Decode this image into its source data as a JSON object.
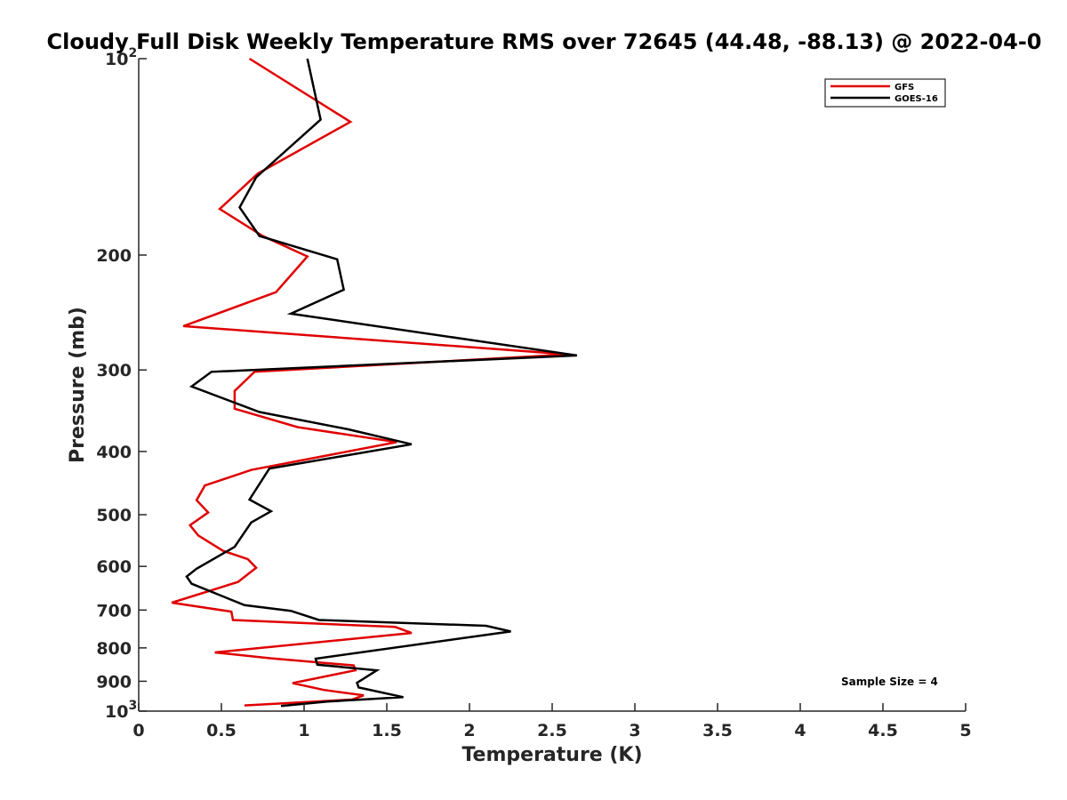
{
  "chart_data": {
    "type": "line",
    "title": "Cloudy Full Disk Weekly Temperature RMS over 72645 (44.48, -88.13) @ 2022-04-0",
    "xlabel": "Temperature (K)",
    "ylabel": "Pressure (mb)",
    "xlim": [
      0,
      5
    ],
    "ylim": [
      100,
      1000
    ],
    "y_scale": "log",
    "y_reversed": true,
    "grid": false,
    "legend_position": "top-right",
    "x_ticks": [
      "0",
      "0.5",
      "1",
      "1.5",
      "2",
      "2.5",
      "3",
      "3.5",
      "4",
      "4.5",
      "5"
    ],
    "y_ticks": [
      {
        "value": 100,
        "label": "10",
        "sup": "2"
      },
      {
        "value": 200,
        "label": "200",
        "sup": ""
      },
      {
        "value": 300,
        "label": "300",
        "sup": ""
      },
      {
        "value": 400,
        "label": "400",
        "sup": ""
      },
      {
        "value": 500,
        "label": "500",
        "sup": ""
      },
      {
        "value": 600,
        "label": "600",
        "sup": ""
      },
      {
        "value": 700,
        "label": "700",
        "sup": ""
      },
      {
        "value": 800,
        "label": "800",
        "sup": ""
      },
      {
        "value": 900,
        "label": "900",
        "sup": ""
      },
      {
        "value": 1000,
        "label": "10",
        "sup": "3"
      }
    ],
    "series": [
      {
        "name": "GFS",
        "color": "#e00000",
        "points": [
          {
            "x": 0.67,
            "y": 100
          },
          {
            "x": 1.28,
            "y": 125
          },
          {
            "x": 0.72,
            "y": 150
          },
          {
            "x": 0.49,
            "y": 170
          },
          {
            "x": 0.75,
            "y": 187
          },
          {
            "x": 1.02,
            "y": 201
          },
          {
            "x": 0.83,
            "y": 228
          },
          {
            "x": 0.27,
            "y": 257
          },
          {
            "x": 2.6,
            "y": 284
          },
          {
            "x": 0.7,
            "y": 302
          },
          {
            "x": 0.58,
            "y": 323
          },
          {
            "x": 0.58,
            "y": 344
          },
          {
            "x": 0.96,
            "y": 367
          },
          {
            "x": 1.56,
            "y": 387
          },
          {
            "x": 0.68,
            "y": 427
          },
          {
            "x": 0.4,
            "y": 451
          },
          {
            "x": 0.35,
            "y": 475
          },
          {
            "x": 0.42,
            "y": 496
          },
          {
            "x": 0.31,
            "y": 519
          },
          {
            "x": 0.36,
            "y": 538
          },
          {
            "x": 0.51,
            "y": 568
          },
          {
            "x": 0.66,
            "y": 585
          },
          {
            "x": 0.71,
            "y": 603
          },
          {
            "x": 0.6,
            "y": 634
          },
          {
            "x": 0.2,
            "y": 682
          },
          {
            "x": 0.56,
            "y": 704
          },
          {
            "x": 0.57,
            "y": 725
          },
          {
            "x": 1.55,
            "y": 743
          },
          {
            "x": 1.65,
            "y": 759
          },
          {
            "x": 0.46,
            "y": 813
          },
          {
            "x": 0.8,
            "y": 830
          },
          {
            "x": 1.3,
            "y": 851
          },
          {
            "x": 1.31,
            "y": 866
          },
          {
            "x": 0.93,
            "y": 906
          },
          {
            "x": 1.12,
            "y": 928
          },
          {
            "x": 1.36,
            "y": 946
          },
          {
            "x": 1.29,
            "y": 960
          },
          {
            "x": 0.64,
            "y": 980
          }
        ]
      },
      {
        "name": "GOES-16",
        "color": "#000000",
        "points": [
          {
            "x": 1.02,
            "y": 100
          },
          {
            "x": 1.1,
            "y": 124
          },
          {
            "x": 0.71,
            "y": 152
          },
          {
            "x": 0.61,
            "y": 169
          },
          {
            "x": 0.73,
            "y": 187
          },
          {
            "x": 1.2,
            "y": 203
          },
          {
            "x": 1.24,
            "y": 226
          },
          {
            "x": 0.92,
            "y": 246
          },
          {
            "x": 2.65,
            "y": 285
          },
          {
            "x": 0.44,
            "y": 302
          },
          {
            "x": 0.32,
            "y": 318
          },
          {
            "x": 0.73,
            "y": 348
          },
          {
            "x": 1.27,
            "y": 370
          },
          {
            "x": 1.65,
            "y": 390
          },
          {
            "x": 0.79,
            "y": 425
          },
          {
            "x": 0.67,
            "y": 474
          },
          {
            "x": 0.8,
            "y": 494
          },
          {
            "x": 0.68,
            "y": 514
          },
          {
            "x": 0.58,
            "y": 560
          },
          {
            "x": 0.35,
            "y": 605
          },
          {
            "x": 0.29,
            "y": 622
          },
          {
            "x": 0.32,
            "y": 638
          },
          {
            "x": 0.64,
            "y": 688
          },
          {
            "x": 0.92,
            "y": 702
          },
          {
            "x": 1.09,
            "y": 725
          },
          {
            "x": 2.1,
            "y": 740
          },
          {
            "x": 2.25,
            "y": 755
          },
          {
            "x": 1.07,
            "y": 831
          },
          {
            "x": 1.08,
            "y": 849
          },
          {
            "x": 1.44,
            "y": 866
          },
          {
            "x": 1.32,
            "y": 905
          },
          {
            "x": 1.33,
            "y": 920
          },
          {
            "x": 1.6,
            "y": 952
          },
          {
            "x": 1.14,
            "y": 967
          },
          {
            "x": 0.86,
            "y": 982
          }
        ]
      }
    ],
    "annotation": "Sample Size = 4"
  }
}
